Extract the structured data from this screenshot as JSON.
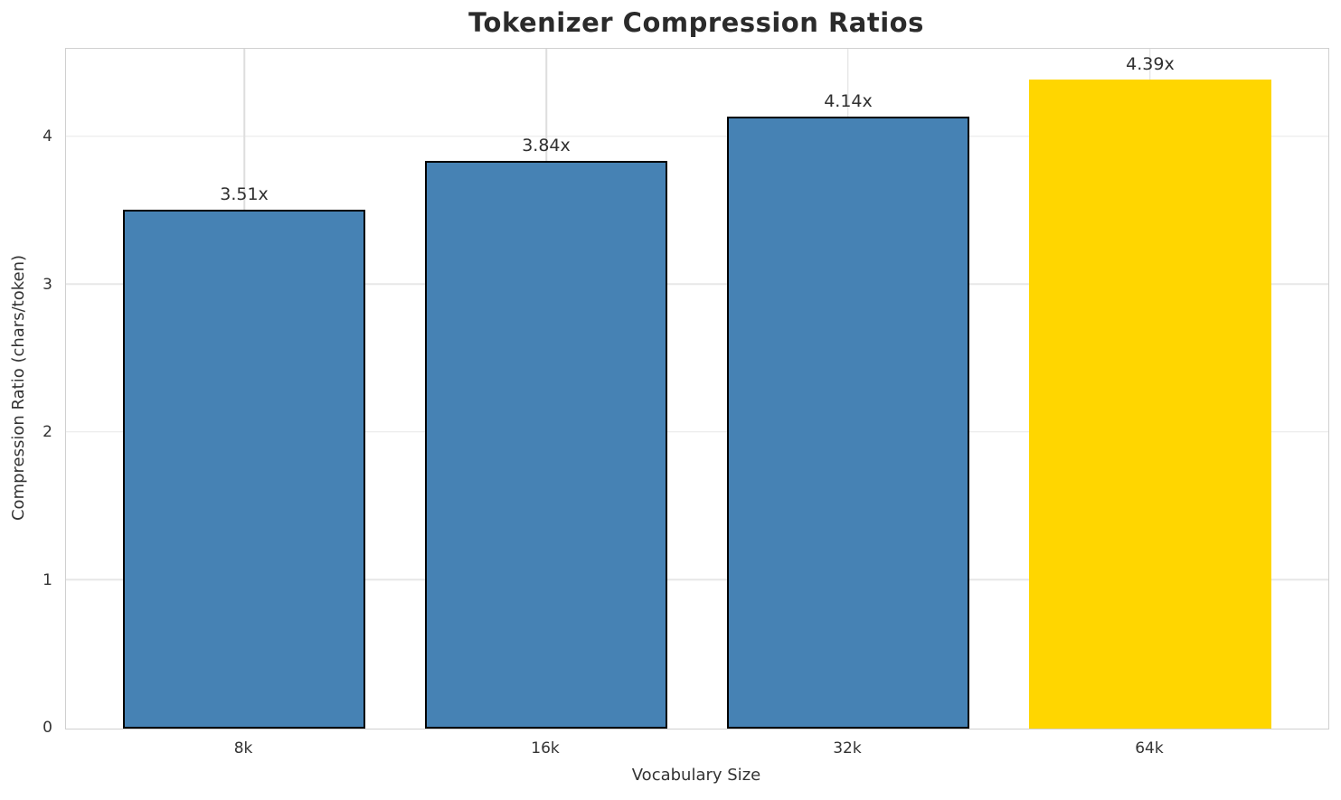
{
  "chart_data": {
    "type": "bar",
    "title": "Tokenizer Compression Ratios",
    "xlabel": "Vocabulary Size",
    "ylabel": "Compression Ratio (chars/token)",
    "categories": [
      "8k",
      "16k",
      "32k",
      "64k"
    ],
    "values": [
      3.51,
      3.84,
      4.14,
      4.39
    ],
    "bar_labels": [
      "3.51x",
      "3.84x",
      "4.14x",
      "4.39x"
    ],
    "bar_colors": [
      "#4682B4",
      "#4682B4",
      "#4682B4",
      "#FFD600"
    ],
    "bar_edge_colors": [
      "#000000",
      "#000000",
      "#000000",
      "none"
    ],
    "highlight_index": 3,
    "yticks": [
      0,
      1,
      2,
      3,
      4
    ],
    "ylim": [
      0,
      4.6
    ],
    "bar_width_fraction": 0.8,
    "grid": true,
    "legend": "none",
    "colors": {
      "background": "#ffffff",
      "spine": "#d0d0d0",
      "grid": "#e7e7e7",
      "text": "#333333",
      "title_text": "#2b2b2b",
      "default_bar": "#4682B4",
      "highlight_bar": "#FFD600",
      "bar_edge": "#000000"
    }
  }
}
